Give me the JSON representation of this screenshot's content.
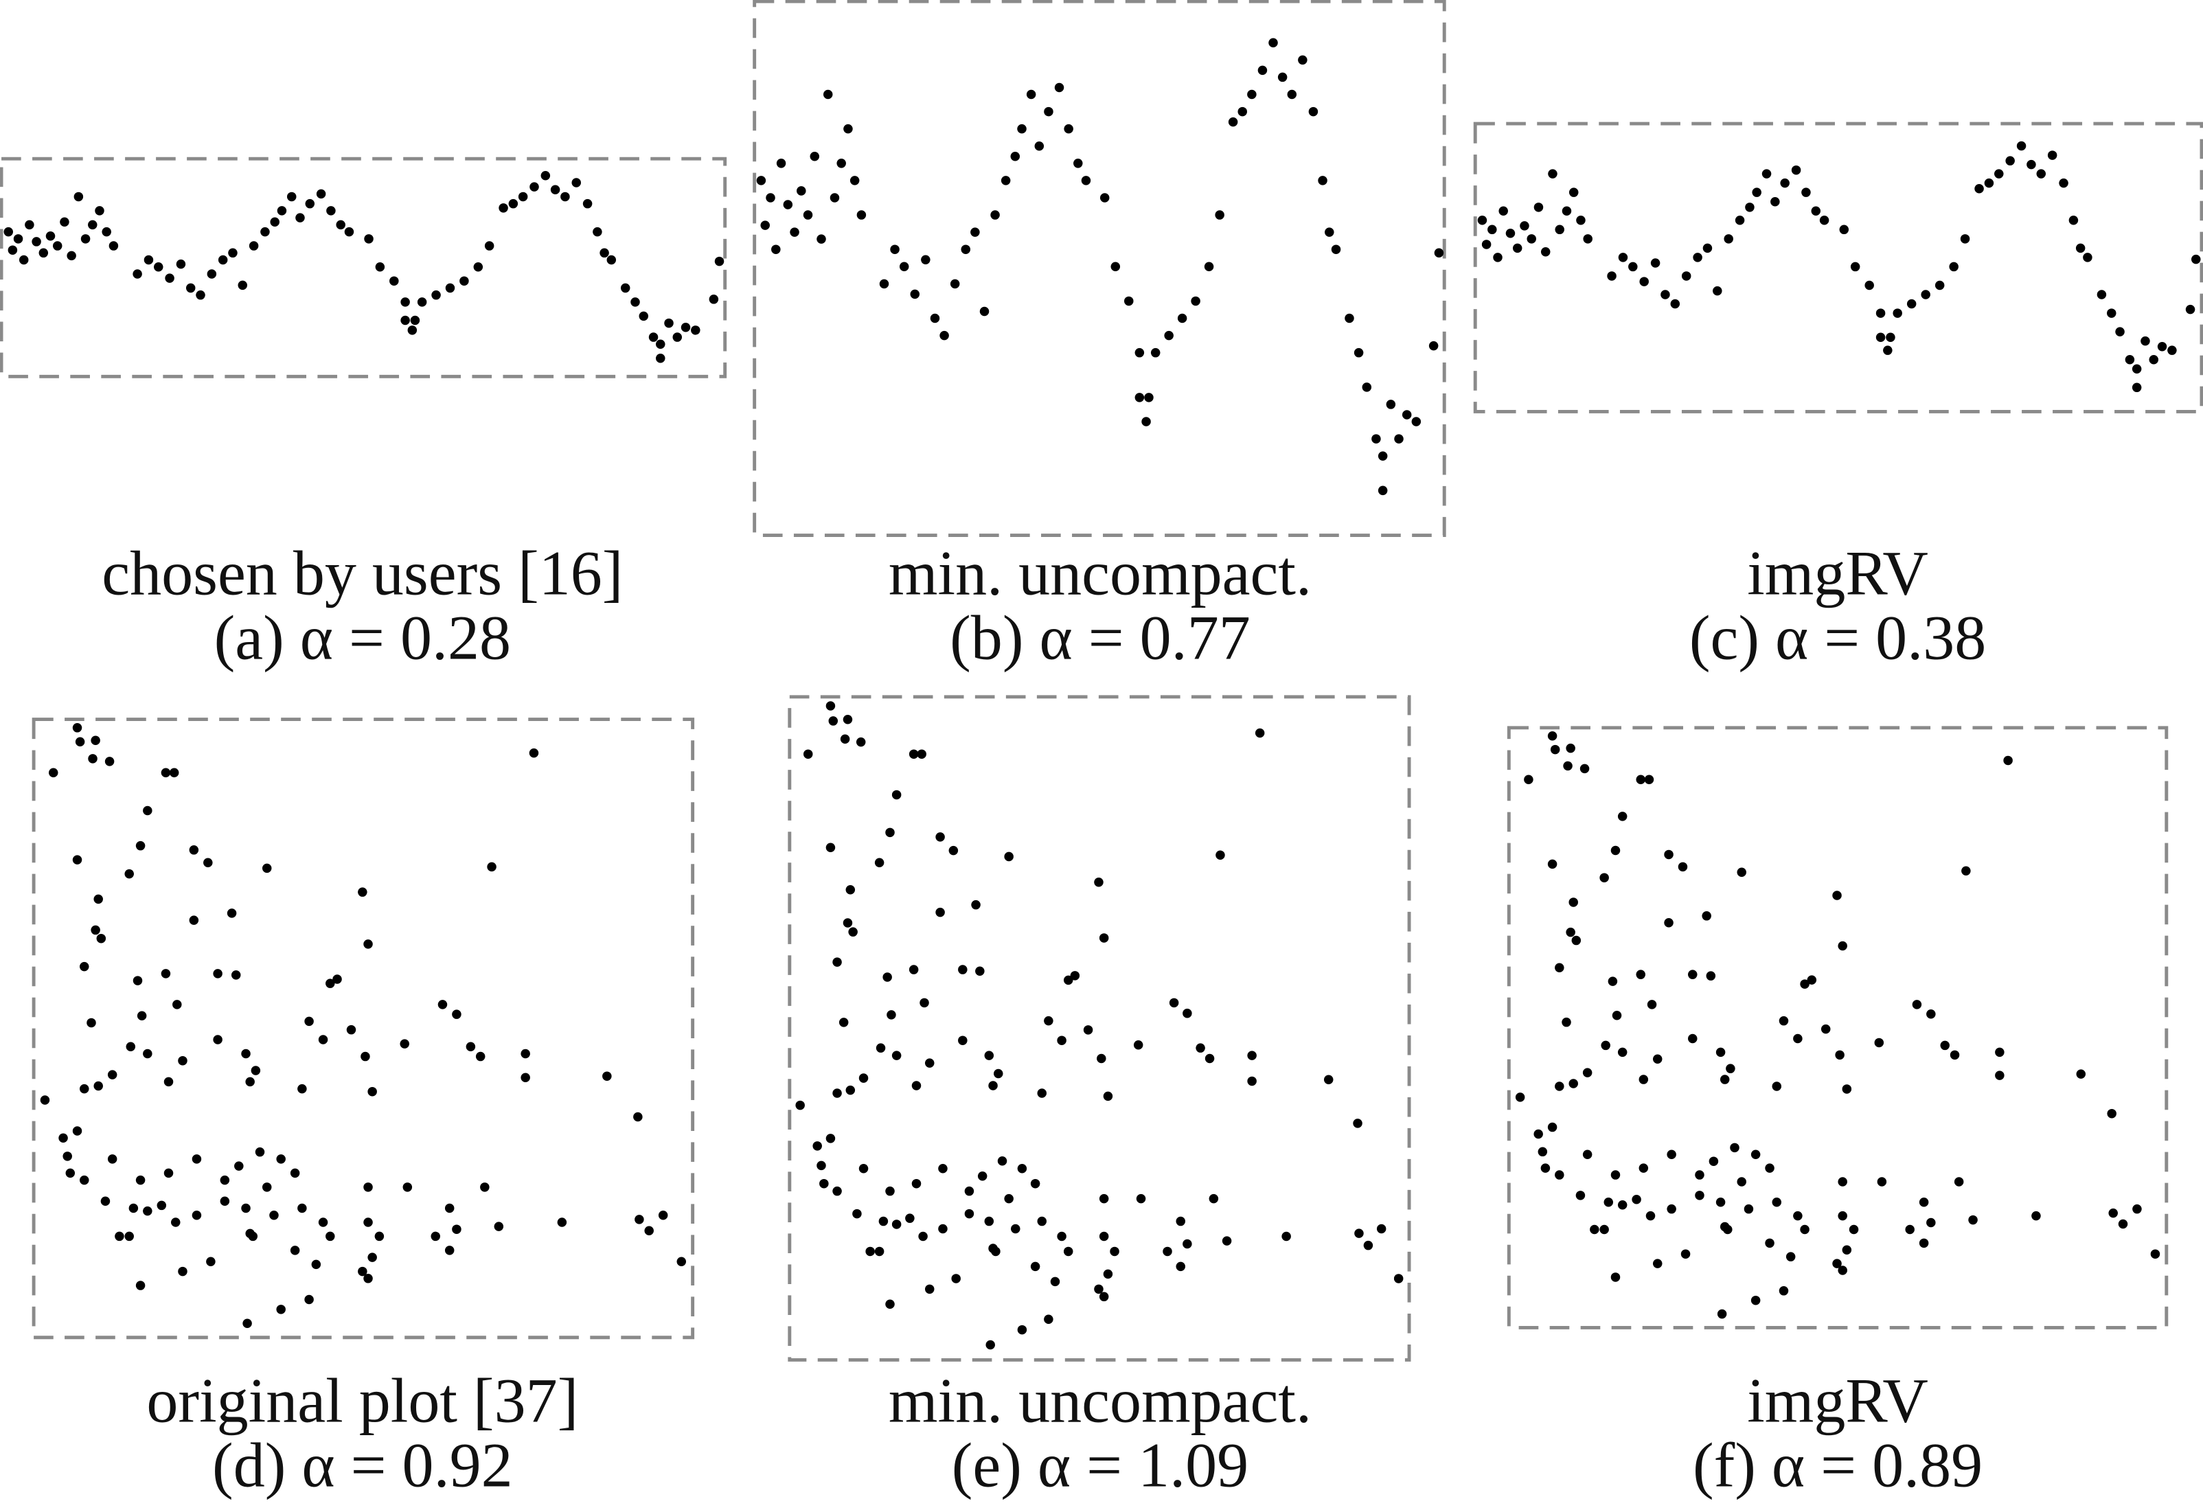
{
  "rows": [
    {
      "xlim": [
        0,
        516
      ],
      "ylim": [
        0,
        155
      ],
      "x": [
        5,
        8,
        12,
        16,
        20,
        25,
        30,
        35,
        40,
        45,
        50,
        55,
        60,
        65,
        70,
        75,
        80,
        97,
        105,
        112,
        120,
        128,
        135,
        142,
        150,
        158,
        165,
        172,
        180,
        188,
        195,
        200,
        207,
        213,
        220,
        228,
        235,
        242,
        248,
        262,
        270,
        280,
        288,
        295,
        300,
        310,
        320,
        330,
        340,
        348,
        358,
        365,
        372,
        380,
        388,
        395,
        402,
        410,
        418,
        425,
        430,
        435,
        445,
        452,
        458,
        465,
        470,
        476,
        482,
        488,
        495,
        508,
        512,
        288,
        293,
        470
      ],
      "y": [
        103,
        90,
        98,
        83,
        108,
        96,
        88,
        100,
        93,
        110,
        86,
        128,
        98,
        108,
        118,
        103,
        93,
        73,
        83,
        78,
        70,
        80,
        63,
        58,
        73,
        83,
        88,
        65,
        93,
        103,
        110,
        118,
        128,
        113,
        123,
        130,
        118,
        108,
        103,
        98,
        78,
        68,
        53,
        40,
        53,
        58,
        63,
        68,
        78,
        93,
        120,
        123,
        128,
        135,
        143,
        133,
        128,
        138,
        123,
        103,
        88,
        83,
        63,
        53,
        43,
        28,
        13,
        38,
        28,
        35,
        33,
        55,
        82,
        40,
        33,
        23
      ],
      "panels": [
        {
          "caption": "chosen by users [16]",
          "label": "(a) α = 0.28"
        },
        {
          "caption": "min. uncompact.",
          "label": "(b) α = 0.77"
        },
        {
          "caption": "imgRV",
          "label": "(c) α = 0.38"
        }
      ]
    },
    {
      "xlim": [
        0,
        469
      ],
      "ylim": [
        0,
        440
      ],
      "x": [
        14,
        31,
        33,
        44,
        42,
        54,
        81,
        94,
        100,
        76,
        31,
        68,
        114,
        124,
        166,
        356,
        326,
        234,
        238,
        46,
        44,
        48,
        36,
        74,
        94,
        102,
        114,
        141,
        131,
        144,
        216,
        211,
        41,
        77,
        69,
        81,
        106,
        131,
        151,
        196,
        206,
        226,
        236,
        264,
        291,
        301,
        311,
        318,
        350,
        350,
        408,
        430,
        8,
        36,
        46,
        56,
        96,
        154,
        158,
        191,
        241,
        21,
        31,
        26,
        36,
        24,
        56,
        76,
        96,
        116,
        136,
        146,
        161,
        176,
        186,
        166,
        51,
        71,
        81,
        91,
        101,
        116,
        136,
        151,
        156,
        171,
        191,
        206,
        238,
        266,
        296,
        321,
        286,
        238,
        246,
        301,
        331,
        376,
        431,
        438,
        448,
        461,
        76,
        106,
        126,
        154,
        196,
        176,
        152,
        238,
        234,
        241,
        296,
        211,
        61,
        68,
        201,
        186
      ],
      "y": [
        402,
        434,
        424,
        425,
        412,
        410,
        375,
        402,
        402,
        350,
        340,
        330,
        347,
        338,
        334,
        416,
        335,
        317,
        280,
        312,
        290,
        284,
        264,
        254,
        259,
        237,
        297,
        302,
        259,
        258,
        255,
        252,
        224,
        229,
        207,
        202,
        197,
        212,
        202,
        225,
        212,
        219,
        200,
        209,
        237,
        230,
        207,
        200,
        202,
        185,
        186,
        157,
        169,
        177,
        179,
        187,
        182,
        182,
        190,
        177,
        175,
        142,
        147,
        117,
        112,
        129,
        127,
        112,
        117,
        127,
        112,
        122,
        132,
        127,
        117,
        107,
        97,
        92,
        90,
        94,
        82,
        87,
        97,
        92,
        72,
        87,
        92,
        82,
        107,
        107,
        92,
        107,
        72,
        82,
        72,
        77,
        79,
        82,
        84,
        76,
        87,
        54,
        37,
        47,
        54,
        74,
        27,
        20,
        10,
        42,
        47,
        57,
        62,
        72,
        72,
        72,
        52,
        62
      ],
      "panels": [
        {
          "caption": "original plot [37]",
          "label": "(d) α = 0.92"
        },
        {
          "caption": "min. uncompact.",
          "label": "(e) α = 1.09"
        },
        {
          "caption": "imgRV",
          "label": "(f) α = 0.89"
        }
      ]
    }
  ]
}
